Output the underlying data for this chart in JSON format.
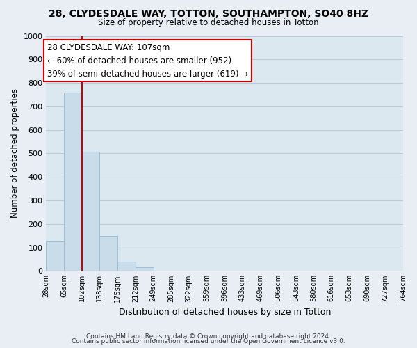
{
  "title": "28, CLYDESDALE WAY, TOTTON, SOUTHAMPTON, SO40 8HZ",
  "subtitle": "Size of property relative to detached houses in Totton",
  "xlabel": "Distribution of detached houses by size in Totton",
  "ylabel": "Number of detached properties",
  "bar_edges": [
    28,
    65,
    102,
    138,
    175,
    212,
    249,
    285,
    322,
    359,
    396,
    433,
    469,
    506,
    543,
    580,
    616,
    653,
    690,
    727,
    764
  ],
  "bar_heights": [
    127,
    760,
    507,
    150,
    40,
    15,
    0,
    0,
    0,
    0,
    0,
    0,
    0,
    0,
    0,
    0,
    0,
    0,
    0,
    0
  ],
  "bar_color": "#c9dcea",
  "bar_edgecolor": "#9bbcd4",
  "vline_x": 102,
  "vline_color": "#cc0000",
  "ylim": [
    0,
    1000
  ],
  "yticks": [
    0,
    100,
    200,
    300,
    400,
    500,
    600,
    700,
    800,
    900,
    1000
  ],
  "annotation_line1": "28 CLYDESDALE WAY: 107sqm",
  "annotation_line2": "← 60% of detached houses are smaller (952)",
  "annotation_line3": "39% of semi-detached houses are larger (619) →",
  "footnote1": "Contains HM Land Registry data © Crown copyright and database right 2024.",
  "footnote2": "Contains public sector information licensed under the Open Government Licence v3.0.",
  "background_color": "#e8eef4",
  "plot_background_color": "#dce8f0",
  "grid_color": "#b8ccd8"
}
